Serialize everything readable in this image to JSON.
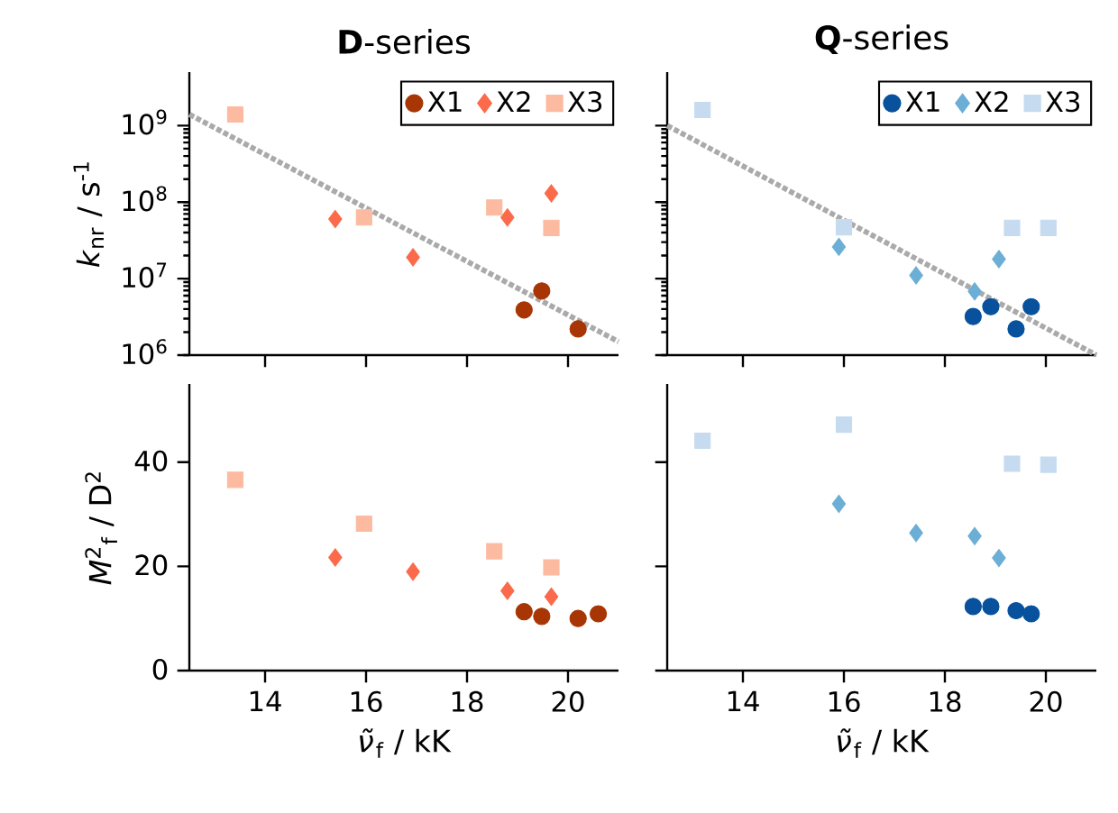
{
  "chart_data": [
    {
      "type": "scatter",
      "title": "**D**-series",
      "ylabel": "*k*$_{nr}$ / s$^{-1}$",
      "log": "y",
      "xlim": [
        12.5,
        21
      ],
      "ylim": [
        1000000,
        5000000000
      ],
      "xticks": [
        14,
        16,
        18,
        20
      ],
      "yticks": [
        {
          "value": 1000000,
          "label": "10$^{6}$"
        },
        {
          "value": 10000000,
          "label": "10$^{7}$"
        },
        {
          "value": 100000000,
          "label": "10$^{8}$"
        },
        {
          "value": 1000000000,
          "label": "10$^{9}$"
        }
      ],
      "tick_labels": "y",
      "legend": "top right",
      "series": [
        {
          "name": "X1",
          "color": "#a83605",
          "marker": "circle",
          "x": [
            19.13,
            19.48,
            20.2
          ],
          "values": [
            3900000,
            6900000,
            2200000
          ]
        },
        {
          "name": "X2",
          "color": "#fb6a4a",
          "marker": "diamond",
          "x": [
            15.39,
            16.93,
            18.8,
            19.67
          ],
          "values": [
            60000000,
            19000000,
            63000000,
            130000000
          ]
        },
        {
          "name": "X3",
          "color": "#fcbba1",
          "marker": "square",
          "x": [
            13.41,
            15.96,
            18.54,
            19.67
          ],
          "values": [
            1400000000,
            63000000,
            85000000,
            46000000
          ]
        },
        {
          "type": "line",
          "color": "#aaaaaa",
          "line_style": "dotted",
          "x": [
            12.5,
            21
          ],
          "values": [
            1400000000,
            1500000
          ]
        }
      ]
    },
    {
      "type": "scatter",
      "title": "**Q**-series",
      "log": "y",
      "xlim": [
        12.5,
        21
      ],
      "ylim": [
        1000000,
        5000000000
      ],
      "xticks": [
        14,
        16,
        18,
        20
      ],
      "yticks": [
        1000000,
        10000000,
        100000000,
        1000000000
      ],
      "tick_labels": false,
      "legend": "top right",
      "series": [
        {
          "name": "X1",
          "color": "#08519c",
          "marker": "circle",
          "x": [
            18.56,
            18.91,
            19.41,
            19.71
          ],
          "values": [
            3200000,
            4300000,
            2200000,
            4300000
          ]
        },
        {
          "name": "X2",
          "color": "#6baed6",
          "marker": "diamond",
          "x": [
            15.9,
            17.43,
            18.59,
            19.07
          ],
          "values": [
            26000000,
            11000000,
            6800000,
            18000000
          ]
        },
        {
          "name": "X3",
          "color": "#c6dbef",
          "marker": "square",
          "x": [
            13.2,
            16.0,
            19.33,
            20.05
          ],
          "values": [
            1600000000,
            47000000,
            46000000,
            46000000
          ]
        },
        {
          "type": "line",
          "color": "#aaaaaa",
          "line_style": "dotted",
          "x": [
            12.5,
            21
          ],
          "values": [
            1000000000,
            1000000
          ]
        }
      ]
    },
    {
      "type": "scatter",
      "xlabel": "*ν̃*$_{f}$ / kK",
      "ylabel": "*M*$^{2}$$_{f}$ / D$^{2}$",
      "xlim": [
        12.5,
        21
      ],
      "ylim": [
        0,
        55
      ],
      "xticks": [
        14,
        16,
        18,
        20
      ],
      "yticks": [
        0,
        20,
        40
      ],
      "series": [
        {
          "color": "#a83605",
          "marker": "circle",
          "x": [
            19.13,
            19.48,
            20.2,
            20.6
          ],
          "values": [
            11.3,
            10.4,
            10.0,
            10.9
          ]
        },
        {
          "color": "#fb6a4a",
          "marker": "diamond",
          "x": [
            15.39,
            16.93,
            18.8,
            19.67
          ],
          "values": [
            21.7,
            19.0,
            15.3,
            14.2
          ]
        },
        {
          "color": "#fcbba1",
          "marker": "square",
          "x": [
            13.41,
            15.96,
            18.54,
            19.67
          ],
          "values": [
            36.6,
            28.2,
            22.9,
            19.8
          ]
        }
      ]
    },
    {
      "type": "scatter",
      "xlabel": "*ν̃*$_{f}$ / kK",
      "xlim": [
        12.5,
        21
      ],
      "ylim": [
        0,
        55
      ],
      "xticks": [
        14,
        16,
        18,
        20
      ],
      "yticks": [
        0,
        20,
        40
      ],
      "tick_labels": "x",
      "series": [
        {
          "color": "#08519c",
          "marker": "circle",
          "x": [
            18.56,
            18.91,
            19.41,
            19.71
          ],
          "values": [
            12.3,
            12.3,
            11.5,
            10.9
          ]
        },
        {
          "color": "#6baed6",
          "marker": "diamond",
          "x": [
            15.9,
            17.43,
            18.59,
            19.07
          ],
          "values": [
            32.0,
            26.4,
            25.8,
            21.6
          ]
        },
        {
          "color": "#c6dbef",
          "marker": "square",
          "x": [
            13.2,
            16.0,
            19.33,
            20.05
          ],
          "values": [
            44.1,
            47.2,
            39.7,
            39.5
          ]
        }
      ]
    }
  ]
}
